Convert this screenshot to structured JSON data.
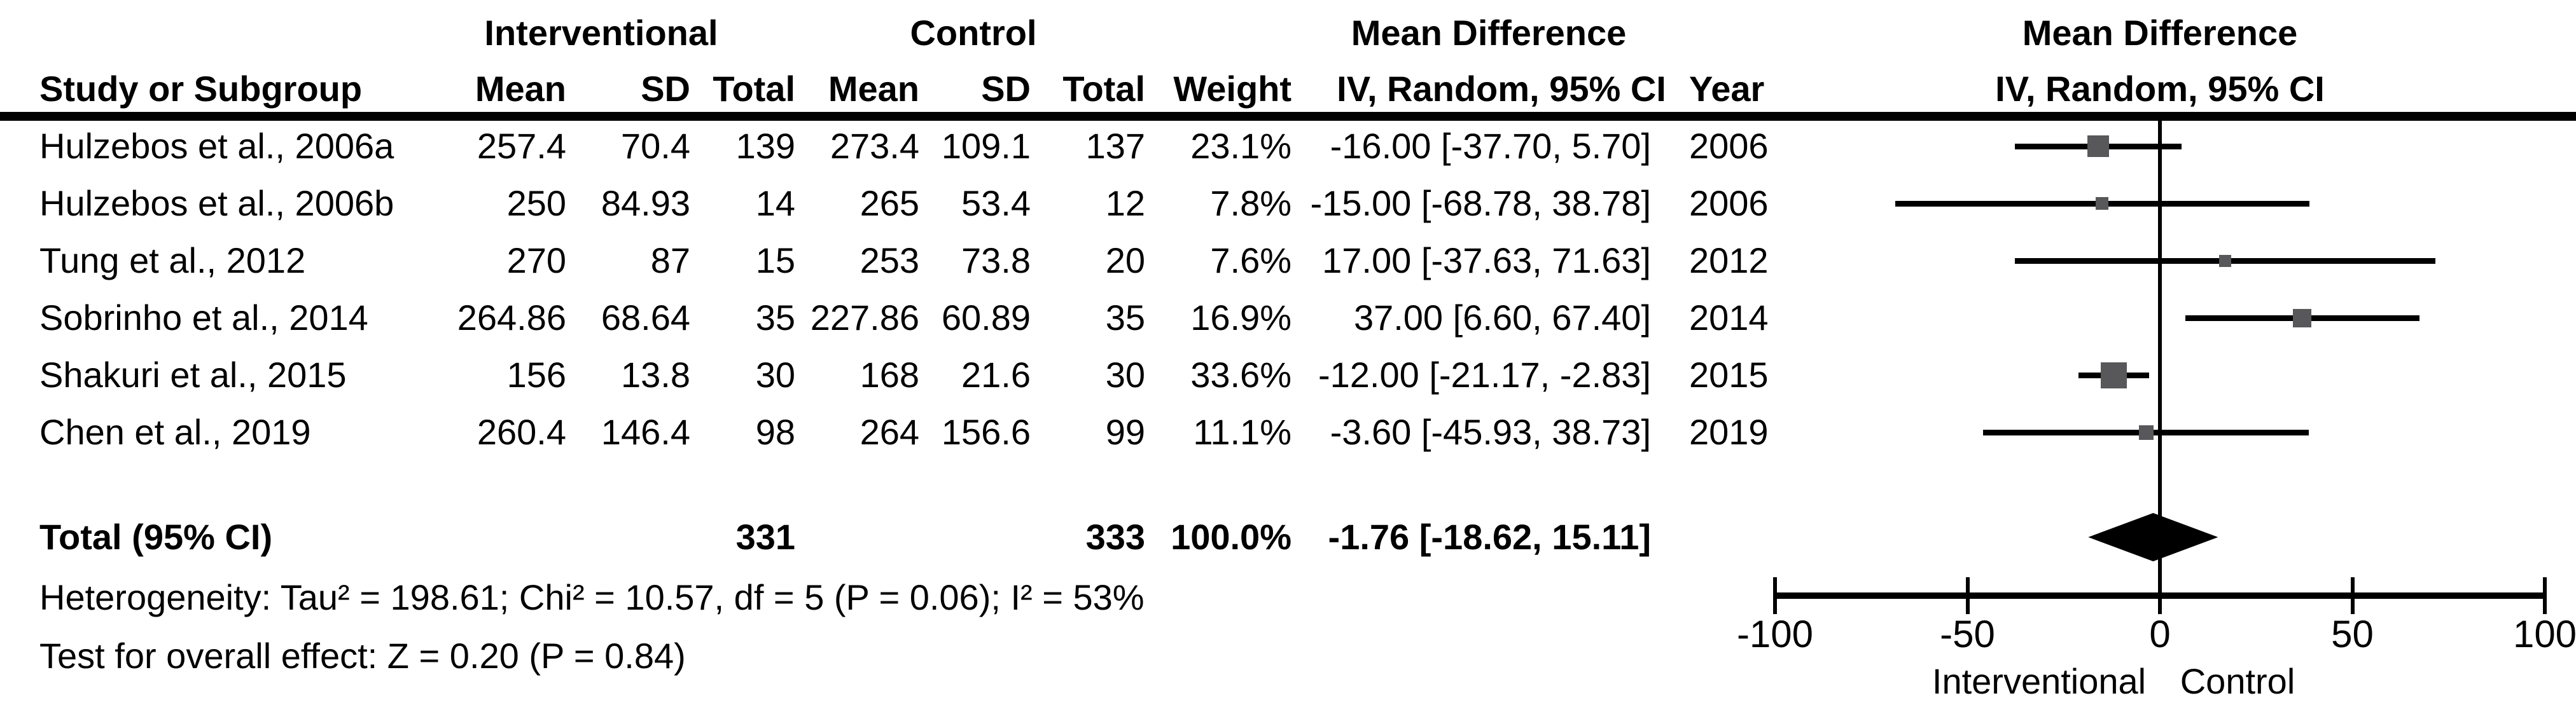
{
  "table": {
    "group_headers": {
      "interventional": "Interventional",
      "control": "Control",
      "mean_difference": "Mean Difference"
    },
    "column_headers": {
      "study": "Study or Subgroup",
      "mean": "Mean",
      "sd": "SD",
      "total": "Total",
      "weight": "Weight",
      "ci": "IV, Random, 95% CI",
      "year": "Year"
    },
    "rows": [
      {
        "study": "Hulzebos et al., 2006a",
        "i_mean": "257.4",
        "i_sd": "70.4",
        "i_total": "139",
        "c_mean": "273.4",
        "c_sd": "109.1",
        "c_total": "137",
        "weight": "23.1%",
        "ci_text": "-16.00 [-37.70, 5.70]",
        "year": "2006"
      },
      {
        "study": "Hulzebos et al., 2006b",
        "i_mean": "250",
        "i_sd": "84.93",
        "i_total": "14",
        "c_mean": "265",
        "c_sd": "53.4",
        "c_total": "12",
        "weight": "7.8%",
        "ci_text": "-15.00 [-68.78, 38.78]",
        "year": "2006"
      },
      {
        "study": "Tung et al., 2012",
        "i_mean": "270",
        "i_sd": "87",
        "i_total": "15",
        "c_mean": "253",
        "c_sd": "73.8",
        "c_total": "20",
        "weight": "7.6%",
        "ci_text": "17.00 [-37.63, 71.63]",
        "year": "2012"
      },
      {
        "study": "Sobrinho et al., 2014",
        "i_mean": "264.86",
        "i_sd": "68.64",
        "i_total": "35",
        "c_mean": "227.86",
        "c_sd": "60.89",
        "c_total": "35",
        "weight": "16.9%",
        "ci_text": "37.00 [6.60, 67.40]",
        "year": "2014"
      },
      {
        "study": "Shakuri et al., 2015",
        "i_mean": "156",
        "i_sd": "13.8",
        "i_total": "30",
        "c_mean": "168",
        "c_sd": "21.6",
        "c_total": "30",
        "weight": "33.6%",
        "ci_text": "-12.00 [-21.17, -2.83]",
        "year": "2015"
      },
      {
        "study": "Chen et al., 2019",
        "i_mean": "260.4",
        "i_sd": "146.4",
        "i_total": "98",
        "c_mean": "264",
        "c_sd": "156.6",
        "c_total": "99",
        "weight": "11.1%",
        "ci_text": "-3.60 [-45.93, 38.73]",
        "year": "2019"
      }
    ],
    "total_row": {
      "label": "Total (95% CI)",
      "i_total": "331",
      "c_total": "333",
      "weight": "100.0%",
      "ci_text": "-1.76 [-18.62, 15.11]"
    }
  },
  "plot": {
    "header_line1": "Mean Difference",
    "header_line2": "IV, Random, 95% CI",
    "tick_labels": [
      "-100",
      "-50",
      "0",
      "50",
      "100"
    ],
    "axis_label_left": "Interventional",
    "axis_label_right": "Control",
    "colors": {
      "marker": "#58585a",
      "line": "#000000",
      "diamond": "#000000"
    }
  },
  "footer": {
    "heterogeneity": "Heterogeneity: Tau² = 198.61; Chi² = 10.57, df = 5 (P = 0.06); I² = 53%",
    "overall_effect": "Test for overall effect: Z = 0.20 (P = 0.84)"
  },
  "chart_data": {
    "type": "scatter",
    "subtype": "forest_plot",
    "effect_measure": "Mean Difference",
    "model": "IV, Random, 95% CI",
    "studies": [
      "Hulzebos et al., 2006a",
      "Hulzebos et al., 2006b",
      "Tung et al., 2012",
      "Sobrinho et al., 2014",
      "Shakuri et al., 2015",
      "Chen et al., 2019"
    ],
    "estimates": [
      -16.0,
      -15.0,
      17.0,
      37.0,
      -12.0,
      -3.6
    ],
    "ci_low": [
      -37.7,
      -68.78,
      -37.63,
      6.6,
      -21.17,
      -45.93
    ],
    "ci_high": [
      5.7,
      38.78,
      71.63,
      67.4,
      -2.83,
      38.73
    ],
    "weights_pct": [
      23.1,
      7.8,
      7.6,
      16.9,
      33.6,
      11.1
    ],
    "years": [
      2006,
      2006,
      2012,
      2014,
      2015,
      2019
    ],
    "interventional": {
      "means": [
        257.4,
        250,
        270,
        264.86,
        156,
        260.4
      ],
      "sds": [
        70.4,
        84.93,
        87,
        68.64,
        13.8,
        146.4
      ],
      "totals": [
        139,
        14,
        15,
        35,
        30,
        98
      ],
      "total_n": 331
    },
    "control": {
      "means": [
        273.4,
        265,
        253,
        227.86,
        168,
        264
      ],
      "sds": [
        109.1,
        53.4,
        73.8,
        60.89,
        21.6,
        156.6
      ],
      "totals": [
        137,
        12,
        20,
        35,
        30,
        99
      ],
      "total_n": 333
    },
    "pooled": {
      "estimate": -1.76,
      "ci_low": -18.62,
      "ci_high": 15.11,
      "weight_pct": 100.0
    },
    "heterogeneity": {
      "tau2": 198.61,
      "chi2": 10.57,
      "df": 5,
      "p": 0.06,
      "i2_pct": 53
    },
    "overall_effect": {
      "z": 0.2,
      "p": 0.84
    },
    "xlim": [
      -100,
      100
    ],
    "x_ticks": [
      -100,
      -50,
      0,
      50,
      100
    ],
    "x_axis_labels": {
      "left": "Interventional",
      "right": "Control"
    },
    "grid": false,
    "legend": "none"
  }
}
